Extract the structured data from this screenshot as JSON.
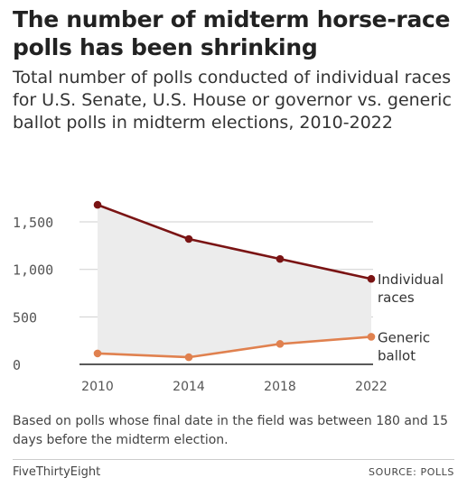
{
  "title": "The number of midterm horse-race polls has been shrinking",
  "subtitle": "Total number of polls conducted of individual races for U.S. Senate, U.S. House or governor vs. generic ballot polls in midterm elections, 2010-2022",
  "note": "Based on polls whose final date in the field was between 180 and 15 days before the midterm election.",
  "brand": "FiveThirtyEight",
  "source": "SOURCE: POLLS",
  "chart_data": {
    "type": "line",
    "title": "The number of midterm horse-race polls has been shrinking",
    "subtitle": "Total number of polls conducted of individual races for U.S. Senate, U.S. House or governor vs. generic ballot polls in midterm elections, 2010-2022",
    "xlabel": "",
    "ylabel": "",
    "x": [
      2010,
      2014,
      2018,
      2022
    ],
    "x_tick_labels": [
      "2010",
      "2014",
      "2018",
      "2022"
    ],
    "y_ticks": [
      0,
      500,
      1000,
      1500
    ],
    "y_tick_labels": [
      "0",
      "500",
      "1,000",
      "1,500"
    ],
    "ylim": [
      0,
      1700
    ],
    "grid": true,
    "legend": "direct labels at right end of lines",
    "series": [
      {
        "name": "Individual races",
        "label_lines": [
          "Individual",
          "races"
        ],
        "color": "#7a1414",
        "values": [
          1680,
          1320,
          1110,
          900
        ]
      },
      {
        "name": "Generic ballot",
        "label_lines": [
          "Generic",
          "ballot"
        ],
        "color": "#e0814f",
        "values": [
          115,
          75,
          215,
          290
        ]
      }
    ],
    "fill_between_color": "#ececec"
  }
}
